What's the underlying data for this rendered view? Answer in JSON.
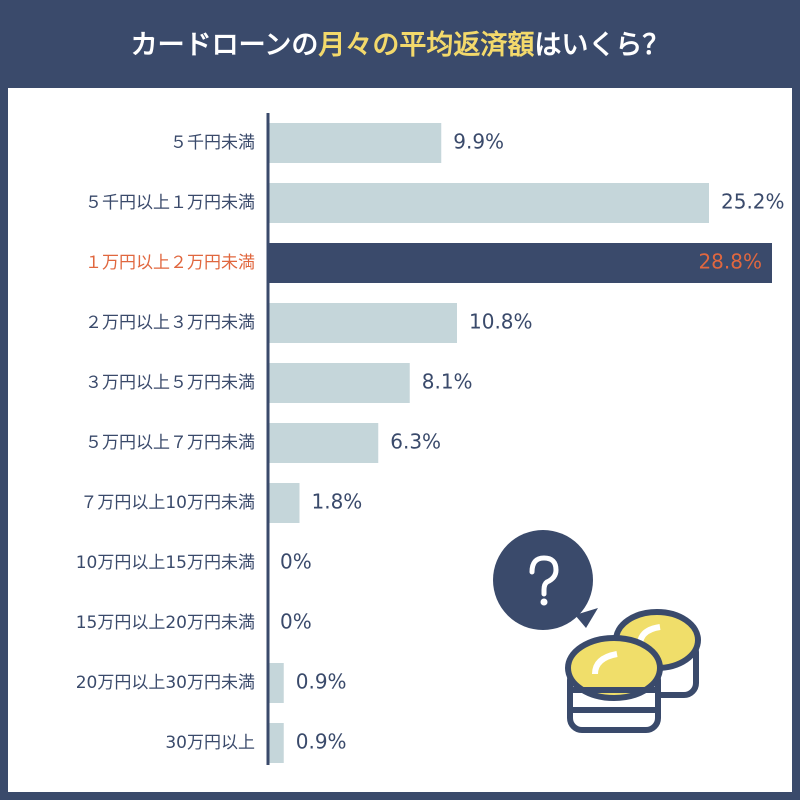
{
  "chart_data": {
    "type": "bar",
    "orientation": "horizontal",
    "title": [
      "カードローンの",
      "月々の平均返済額",
      "はいくら？"
    ],
    "categories": [
      "５千円未満",
      "５千円以上１万円未満",
      "１万円以上２万円未満",
      "２万円以上３万円未満",
      "３万円以上５万円未満",
      "５万円以上７万円未満",
      "７万円以上10万円未満",
      "10万円以上15万円未満",
      "15万円以上20万円未満",
      "20万円以上30万円未満",
      "30万円以上"
    ],
    "values": [
      9.9,
      25.2,
      28.8,
      10.8,
      8.1,
      6.3,
      1.8,
      0,
      0,
      0.9,
      0.9
    ],
    "value_labels": [
      "9.9%",
      "25.2%",
      "28.8%",
      "10.8%",
      "8.1%",
      "6.3%",
      "1.8%",
      "0%",
      "0%",
      "0.9%",
      "0.9%"
    ],
    "color": "#c5d6da",
    "highlight": {
      "index": 2,
      "color": "#3a4a6b",
      "text_color": "#e0673f"
    },
    "xlim": [
      0,
      30
    ]
  }
}
